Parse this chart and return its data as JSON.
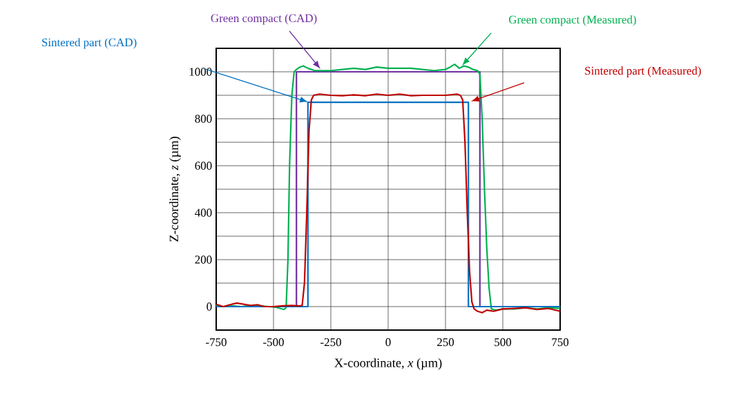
{
  "chart_data": {
    "type": "line",
    "xlabel": "X-coordinate, *x* (µm)",
    "ylabel": "Z-coordinate, *z* (µm)",
    "xlim": [
      -750,
      750
    ],
    "ylim": [
      -100,
      1100
    ],
    "xticks": [
      -750,
      -500,
      -250,
      0,
      250,
      500,
      750
    ],
    "yticks": [
      0,
      {
        "value": 100,
        "label": null
      },
      200,
      {
        "value": 300,
        "label": null
      },
      400,
      {
        "value": 500,
        "label": null
      },
      600,
      {
        "value": 700,
        "label": null
      },
      800,
      {
        "value": 900,
        "label": null
      },
      1000
    ],
    "grid": true,
    "legend": false,
    "marker": "none",
    "line_style": "solid",
    "series": [
      {
        "name": "Green compact (CAD)",
        "color": "#7030a0",
        "x": [
          -750,
          -400,
          -400,
          400,
          400,
          750
        ],
        "values": [
          0,
          0,
          1000,
          1000,
          0,
          0
        ]
      },
      {
        "name": "Green compact (Measured)",
        "color": "#00b050",
        "x": [
          -750,
          -720,
          -680,
          -640,
          -600,
          -560,
          -520,
          -490,
          -470,
          -455,
          -445,
          -437,
          -430,
          -420,
          -410,
          -400,
          -385,
          -370,
          -350,
          -320,
          -290,
          -250,
          -200,
          -150,
          -100,
          -50,
          0,
          50,
          100,
          150,
          200,
          250,
          270,
          290,
          310,
          330,
          350,
          370,
          390,
          400,
          410,
          420,
          430,
          440,
          450,
          470,
          500,
          550,
          600,
          650,
          700,
          750
        ],
        "values": [
          5,
          0,
          3,
          0,
          5,
          3,
          0,
          -3,
          -8,
          -12,
          -5,
          200,
          600,
          900,
          1000,
          1010,
          1020,
          1025,
          1015,
          1005,
          1005,
          1005,
          1010,
          1015,
          1010,
          1020,
          1015,
          1015,
          1015,
          1010,
          1005,
          1010,
          1020,
          1032,
          1015,
          1025,
          1020,
          1010,
          1005,
          990,
          800,
          500,
          250,
          80,
          -10,
          -15,
          -10,
          -10,
          -5,
          -10,
          -5,
          -8
        ]
      },
      {
        "name": "Sintered part (CAD)",
        "color": "#0070c0",
        "x": [
          -750,
          -350,
          -350,
          350,
          350,
          750
        ],
        "values": [
          0,
          0,
          870,
          870,
          0,
          0
        ]
      },
      {
        "name": "Sintered part (Measured)",
        "color": "#c00000",
        "x": [
          -750,
          -720,
          -690,
          -660,
          -630,
          -600,
          -570,
          -540,
          -500,
          -460,
          -420,
          -390,
          -375,
          -365,
          -355,
          -345,
          -335,
          -325,
          -300,
          -250,
          -200,
          -150,
          -100,
          -50,
          0,
          50,
          100,
          150,
          200,
          250,
          300,
          315,
          325,
          335,
          345,
          355,
          365,
          375,
          390,
          410,
          430,
          460,
          500,
          550,
          600,
          650,
          700,
          750
        ],
        "values": [
          10,
          0,
          8,
          15,
          10,
          5,
          8,
          0,
          0,
          3,
          5,
          3,
          5,
          100,
          400,
          750,
          880,
          900,
          905,
          900,
          898,
          902,
          898,
          905,
          900,
          905,
          898,
          900,
          900,
          900,
          905,
          900,
          880,
          700,
          400,
          150,
          20,
          -10,
          -20,
          -26,
          -15,
          -20,
          -10,
          -8,
          -5,
          -12,
          -8,
          -20
        ]
      }
    ]
  }
}
